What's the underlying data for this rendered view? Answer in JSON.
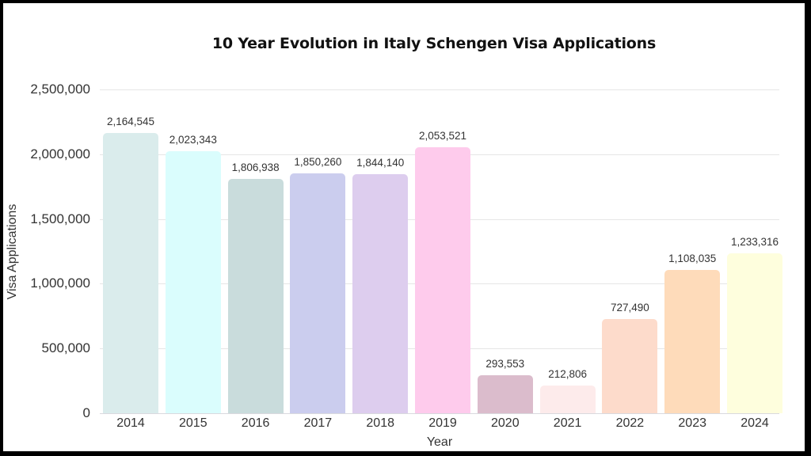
{
  "chart_data": {
    "type": "bar",
    "title": "10 Year Evolution in Italy Schengen Visa Applications",
    "xlabel": "Year",
    "ylabel": "Visa Applications",
    "ylim": [
      0,
      2500000
    ],
    "yticks": [
      "0",
      "500,000",
      "1,000,000",
      "1,500,000",
      "2,000,000",
      "2,500,000"
    ],
    "grid": true,
    "legend": "none",
    "categories": [
      "2014",
      "2015",
      "2016",
      "2017",
      "2018",
      "2019",
      "2020",
      "2021",
      "2022",
      "2023",
      "2024"
    ],
    "values": [
      2164545,
      2023343,
      1806938,
      1850260,
      1844140,
      2053521,
      293553,
      212806,
      727490,
      1108035,
      1233316
    ],
    "value_labels": [
      "2,164,545",
      "2,023,343",
      "1,806,938",
      "1,850,260",
      "1,844,140",
      "2,053,521",
      "293,553",
      "212,806",
      "727,490",
      "1,108,035",
      "1,233,316"
    ],
    "colors": [
      "#daecec",
      "#dafdfd",
      "#c9dcdc",
      "#cbcdee",
      "#ddcdee",
      "#fecbec",
      "#dbbccc",
      "#fdebeb",
      "#fddbcb",
      "#fedbba",
      "#fefedd"
    ]
  }
}
